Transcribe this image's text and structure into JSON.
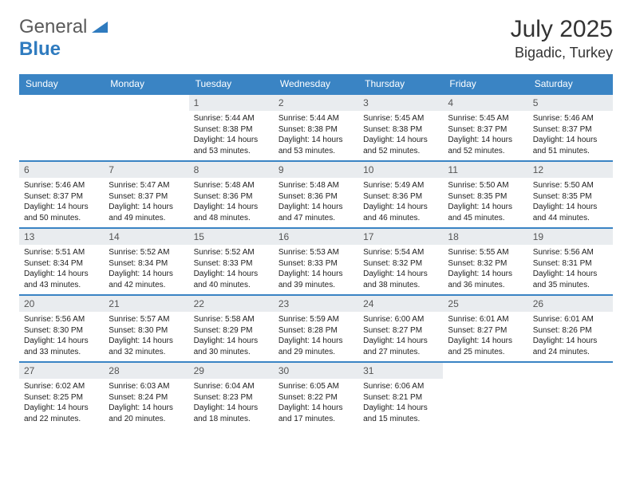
{
  "brand": {
    "part1": "General",
    "part2": "Blue"
  },
  "title": {
    "monthYear": "July 2025",
    "location": "Bigadic, Turkey"
  },
  "colors": {
    "headerBg": "#3a84c4",
    "headerText": "#ffffff",
    "dayNumBg": "#e9ecef",
    "dayNumText": "#555555",
    "bodyText": "#222222",
    "rowBorder": "#3a84c4",
    "brandGray": "#5a5a5a",
    "brandBlue": "#2f7bbf"
  },
  "typography": {
    "monthYear_fontsize": 30,
    "location_fontsize": 18,
    "dayHeader_fontsize": 12,
    "dayNum_fontsize": 12,
    "body_fontsize": 10
  },
  "dayHeaders": [
    "Sunday",
    "Monday",
    "Tuesday",
    "Wednesday",
    "Thursday",
    "Friday",
    "Saturday"
  ],
  "weeks": [
    [
      null,
      null,
      {
        "n": "1",
        "sunrise": "5:44 AM",
        "sunset": "8:38 PM",
        "daylight": "14 hours and 53 minutes."
      },
      {
        "n": "2",
        "sunrise": "5:44 AM",
        "sunset": "8:38 PM",
        "daylight": "14 hours and 53 minutes."
      },
      {
        "n": "3",
        "sunrise": "5:45 AM",
        "sunset": "8:38 PM",
        "daylight": "14 hours and 52 minutes."
      },
      {
        "n": "4",
        "sunrise": "5:45 AM",
        "sunset": "8:37 PM",
        "daylight": "14 hours and 52 minutes."
      },
      {
        "n": "5",
        "sunrise": "5:46 AM",
        "sunset": "8:37 PM",
        "daylight": "14 hours and 51 minutes."
      }
    ],
    [
      {
        "n": "6",
        "sunrise": "5:46 AM",
        "sunset": "8:37 PM",
        "daylight": "14 hours and 50 minutes."
      },
      {
        "n": "7",
        "sunrise": "5:47 AM",
        "sunset": "8:37 PM",
        "daylight": "14 hours and 49 minutes."
      },
      {
        "n": "8",
        "sunrise": "5:48 AM",
        "sunset": "8:36 PM",
        "daylight": "14 hours and 48 minutes."
      },
      {
        "n": "9",
        "sunrise": "5:48 AM",
        "sunset": "8:36 PM",
        "daylight": "14 hours and 47 minutes."
      },
      {
        "n": "10",
        "sunrise": "5:49 AM",
        "sunset": "8:36 PM",
        "daylight": "14 hours and 46 minutes."
      },
      {
        "n": "11",
        "sunrise": "5:50 AM",
        "sunset": "8:35 PM",
        "daylight": "14 hours and 45 minutes."
      },
      {
        "n": "12",
        "sunrise": "5:50 AM",
        "sunset": "8:35 PM",
        "daylight": "14 hours and 44 minutes."
      }
    ],
    [
      {
        "n": "13",
        "sunrise": "5:51 AM",
        "sunset": "8:34 PM",
        "daylight": "14 hours and 43 minutes."
      },
      {
        "n": "14",
        "sunrise": "5:52 AM",
        "sunset": "8:34 PM",
        "daylight": "14 hours and 42 minutes."
      },
      {
        "n": "15",
        "sunrise": "5:52 AM",
        "sunset": "8:33 PM",
        "daylight": "14 hours and 40 minutes."
      },
      {
        "n": "16",
        "sunrise": "5:53 AM",
        "sunset": "8:33 PM",
        "daylight": "14 hours and 39 minutes."
      },
      {
        "n": "17",
        "sunrise": "5:54 AM",
        "sunset": "8:32 PM",
        "daylight": "14 hours and 38 minutes."
      },
      {
        "n": "18",
        "sunrise": "5:55 AM",
        "sunset": "8:32 PM",
        "daylight": "14 hours and 36 minutes."
      },
      {
        "n": "19",
        "sunrise": "5:56 AM",
        "sunset": "8:31 PM",
        "daylight": "14 hours and 35 minutes."
      }
    ],
    [
      {
        "n": "20",
        "sunrise": "5:56 AM",
        "sunset": "8:30 PM",
        "daylight": "14 hours and 33 minutes."
      },
      {
        "n": "21",
        "sunrise": "5:57 AM",
        "sunset": "8:30 PM",
        "daylight": "14 hours and 32 minutes."
      },
      {
        "n": "22",
        "sunrise": "5:58 AM",
        "sunset": "8:29 PM",
        "daylight": "14 hours and 30 minutes."
      },
      {
        "n": "23",
        "sunrise": "5:59 AM",
        "sunset": "8:28 PM",
        "daylight": "14 hours and 29 minutes."
      },
      {
        "n": "24",
        "sunrise": "6:00 AM",
        "sunset": "8:27 PM",
        "daylight": "14 hours and 27 minutes."
      },
      {
        "n": "25",
        "sunrise": "6:01 AM",
        "sunset": "8:27 PM",
        "daylight": "14 hours and 25 minutes."
      },
      {
        "n": "26",
        "sunrise": "6:01 AM",
        "sunset": "8:26 PM",
        "daylight": "14 hours and 24 minutes."
      }
    ],
    [
      {
        "n": "27",
        "sunrise": "6:02 AM",
        "sunset": "8:25 PM",
        "daylight": "14 hours and 22 minutes."
      },
      {
        "n": "28",
        "sunrise": "6:03 AM",
        "sunset": "8:24 PM",
        "daylight": "14 hours and 20 minutes."
      },
      {
        "n": "29",
        "sunrise": "6:04 AM",
        "sunset": "8:23 PM",
        "daylight": "14 hours and 18 minutes."
      },
      {
        "n": "30",
        "sunrise": "6:05 AM",
        "sunset": "8:22 PM",
        "daylight": "14 hours and 17 minutes."
      },
      {
        "n": "31",
        "sunrise": "6:06 AM",
        "sunset": "8:21 PM",
        "daylight": "14 hours and 15 minutes."
      },
      null,
      null
    ]
  ],
  "labels": {
    "sunrise": "Sunrise: ",
    "sunset": "Sunset: ",
    "daylight": "Daylight: "
  }
}
